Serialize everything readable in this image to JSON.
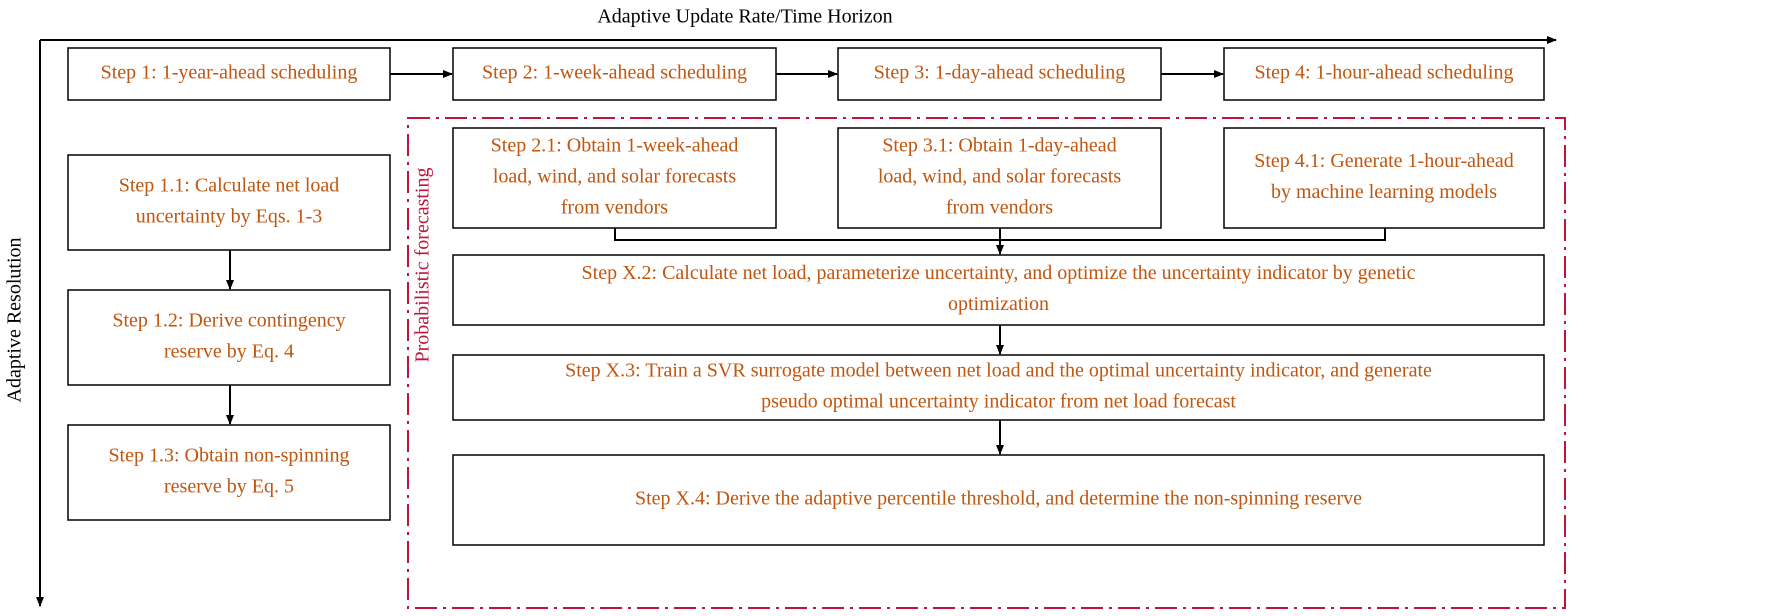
{
  "header": {
    "horizontal_axis": "Adaptive Update Rate/Time Horizon",
    "vertical_axis": "Adaptive Resolution",
    "region_label": "Probabilistic forecasting"
  },
  "top_steps": [
    {
      "lines": [
        "Step 1: 1-year-ahead scheduling"
      ]
    },
    {
      "lines": [
        "Step 2: 1-week-ahead scheduling"
      ]
    },
    {
      "lines": [
        "Step 3: 1-day-ahead scheduling"
      ]
    },
    {
      "lines": [
        "Step 4: 1-hour-ahead scheduling"
      ]
    }
  ],
  "left_steps": [
    {
      "lines": [
        "Step 1.1: Calculate net load",
        "uncertainty by Eqs. 1-3"
      ]
    },
    {
      "lines": [
        "Step 1.2: Derive contingency",
        "reserve by Eq. 4"
      ]
    },
    {
      "lines": [
        "Step 1.3: Obtain non-spinning",
        "reserve by Eq. 5"
      ]
    }
  ],
  "forecast_steps": [
    {
      "lines": [
        "Step 2.1: Obtain 1-week-ahead",
        "load, wind, and solar forecasts",
        "from vendors"
      ]
    },
    {
      "lines": [
        "Step 3.1: Obtain 1-day-ahead",
        "load, wind, and solar forecasts",
        "from vendors"
      ]
    },
    {
      "lines": [
        "Step 4.1: Generate 1-hour-ahead",
        "by machine learning models"
      ]
    }
  ],
  "process_steps": [
    {
      "lines": [
        "Step X.2: Calculate net load, parameterize uncertainty, and optimize the uncertainty indicator by genetic",
        "optimization"
      ]
    },
    {
      "lines": [
        "Step X.3: Train a SVR surrogate model between net load and the optimal uncertainty indicator, and generate",
        "pseudo optimal uncertainty indicator from net load forecast"
      ]
    },
    {
      "lines": [
        "Step X.4: Derive the adaptive percentile threshold, and determine the non-spinning reserve"
      ]
    }
  ]
}
